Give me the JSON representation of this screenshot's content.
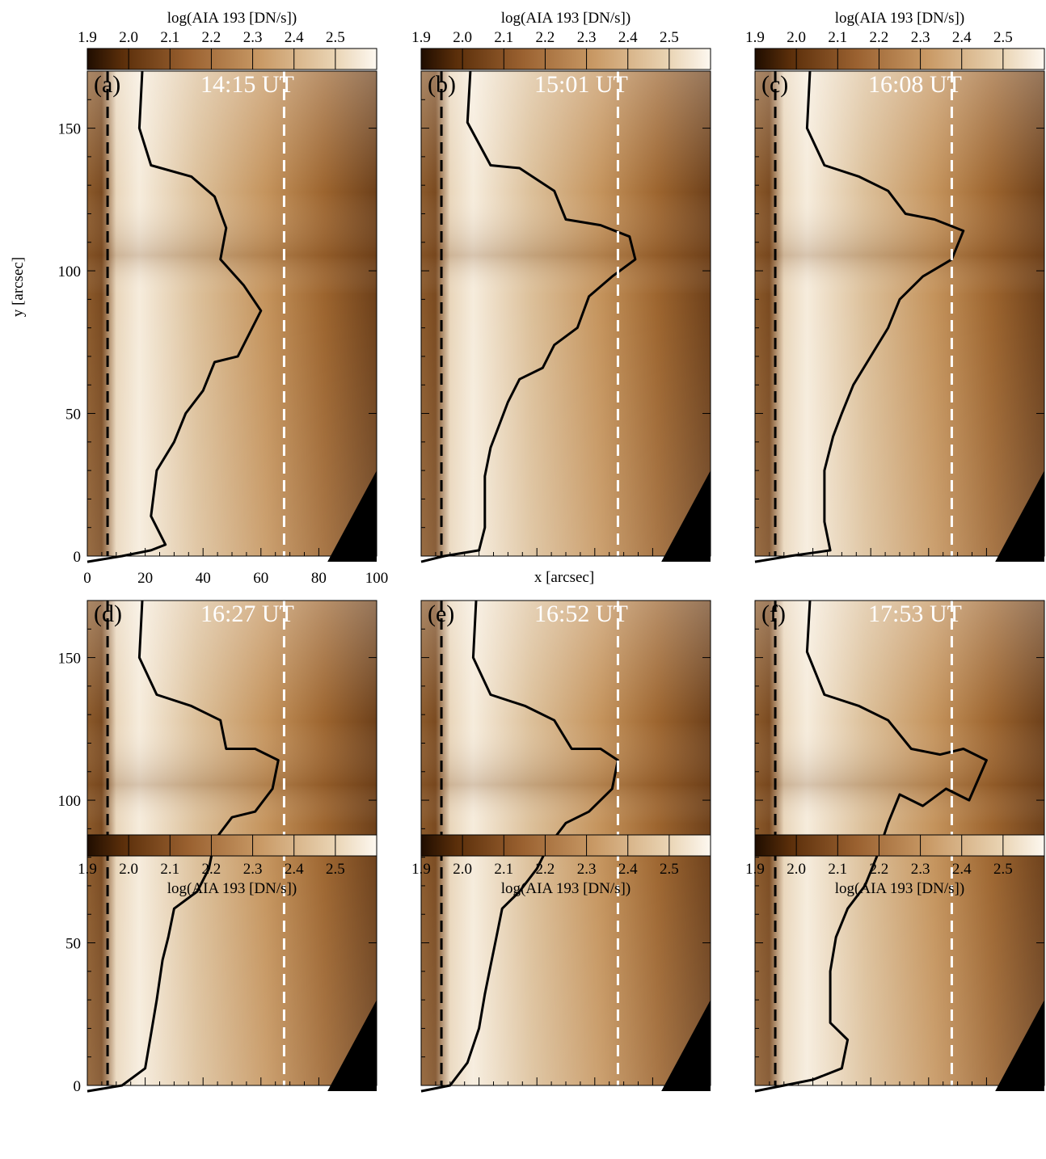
{
  "figure": {
    "xlabel": "x [arcsec]",
    "ylabel": "y [arcsec]",
    "colorbar_label": "log(AIA 193 [DN/s])",
    "colorbar_ticks": [
      "1.9",
      "2.0",
      "2.1",
      "2.2",
      "2.3",
      "2.4",
      "2.5"
    ]
  },
  "chart_data": [
    {
      "type": "heatmap",
      "panel_label": "(a)",
      "time": "14:15 UT",
      "colorbar_label": "log(AIA 193 [DN/s])",
      "colorbar_range": [
        1.9,
        2.6
      ],
      "xlim": [
        0,
        100
      ],
      "ylim": [
        0,
        170
      ],
      "xticks": [
        0,
        20,
        40,
        60,
        80,
        100
      ],
      "yticks": [
        0,
        50,
        100,
        150
      ],
      "xlabel": "",
      "ylabel": "y [arcsec]",
      "dashed_lines_x": [
        7,
        68
      ],
      "contour_boundary": [
        [
          19,
          170
        ],
        [
          18,
          150
        ],
        [
          22,
          137
        ],
        [
          36,
          133
        ],
        [
          44,
          126
        ],
        [
          48,
          115
        ],
        [
          46,
          104
        ],
        [
          54,
          95
        ],
        [
          60,
          86
        ],
        [
          56,
          78
        ],
        [
          52,
          70
        ],
        [
          44,
          68
        ],
        [
          40,
          58
        ],
        [
          34,
          50
        ],
        [
          30,
          40
        ],
        [
          24,
          30
        ],
        [
          22,
          14
        ],
        [
          27,
          4
        ],
        [
          22,
          2
        ],
        [
          12,
          0
        ],
        [
          0,
          -2
        ]
      ]
    },
    {
      "type": "heatmap",
      "panel_label": "(b)",
      "time": "15:01 UT",
      "colorbar_label": "log(AIA 193 [DN/s])",
      "colorbar_range": [
        1.9,
        2.6
      ],
      "xlim": [
        0,
        100
      ],
      "ylim": [
        0,
        170
      ],
      "yticks": [
        0,
        50,
        100,
        150
      ],
      "dashed_lines_x": [
        7,
        68
      ],
      "contour_boundary": [
        [
          17,
          170
        ],
        [
          16,
          152
        ],
        [
          24,
          137
        ],
        [
          34,
          136
        ],
        [
          46,
          128
        ],
        [
          50,
          118
        ],
        [
          62,
          116
        ],
        [
          72,
          112
        ],
        [
          74,
          104
        ],
        [
          66,
          98
        ],
        [
          58,
          91
        ],
        [
          54,
          80
        ],
        [
          46,
          74
        ],
        [
          42,
          66
        ],
        [
          34,
          62
        ],
        [
          30,
          54
        ],
        [
          27,
          46
        ],
        [
          24,
          38
        ],
        [
          22,
          28
        ],
        [
          22,
          10
        ],
        [
          20,
          2
        ],
        [
          8,
          0
        ],
        [
          0,
          -2
        ]
      ]
    },
    {
      "type": "heatmap",
      "panel_label": "(c)",
      "time": "16:08 UT",
      "colorbar_label": "log(AIA 193 [DN/s])",
      "colorbar_range": [
        1.9,
        2.6
      ],
      "xlim": [
        0,
        100
      ],
      "ylim": [
        0,
        170
      ],
      "yticks": [
        0,
        50,
        100,
        150
      ],
      "dashed_lines_x": [
        7,
        68
      ],
      "contour_boundary": [
        [
          19,
          170
        ],
        [
          18,
          150
        ],
        [
          24,
          137
        ],
        [
          36,
          133
        ],
        [
          46,
          128
        ],
        [
          52,
          120
        ],
        [
          62,
          118
        ],
        [
          72,
          114
        ],
        [
          68,
          104
        ],
        [
          58,
          98
        ],
        [
          50,
          90
        ],
        [
          46,
          80
        ],
        [
          40,
          70
        ],
        [
          34,
          60
        ],
        [
          30,
          50
        ],
        [
          27,
          42
        ],
        [
          24,
          30
        ],
        [
          24,
          12
        ],
        [
          26,
          2
        ],
        [
          12,
          0
        ],
        [
          0,
          -2
        ]
      ]
    },
    {
      "type": "heatmap",
      "panel_label": "(d)",
      "time": "16:27 UT",
      "colorbar_label": "log(AIA 193 [DN/s])",
      "colorbar_range": [
        1.9,
        2.6
      ],
      "xlim": [
        0,
        100
      ],
      "ylim": [
        0,
        170
      ],
      "yticks": [
        0,
        50,
        100,
        150
      ],
      "dashed_lines_x": [
        7,
        68
      ],
      "contour_boundary": [
        [
          19,
          170
        ],
        [
          18,
          150
        ],
        [
          24,
          137
        ],
        [
          36,
          133
        ],
        [
          46,
          128
        ],
        [
          48,
          118
        ],
        [
          58,
          118
        ],
        [
          66,
          114
        ],
        [
          64,
          104
        ],
        [
          58,
          96
        ],
        [
          50,
          94
        ],
        [
          44,
          86
        ],
        [
          42,
          76
        ],
        [
          38,
          68
        ],
        [
          30,
          62
        ],
        [
          28,
          52
        ],
        [
          26,
          44
        ],
        [
          24,
          30
        ],
        [
          22,
          18
        ],
        [
          20,
          6
        ],
        [
          12,
          0
        ],
        [
          0,
          -2
        ]
      ]
    },
    {
      "type": "heatmap",
      "panel_label": "(e)",
      "time": "16:52 UT",
      "colorbar_label": "log(AIA 193 [DN/s])",
      "colorbar_range": [
        1.9,
        2.6
      ],
      "xlim": [
        0,
        100
      ],
      "ylim": [
        0,
        170
      ],
      "yticks": [
        0,
        50,
        100,
        150
      ],
      "dashed_lines_x": [
        7,
        68
      ],
      "contour_boundary": [
        [
          19,
          170
        ],
        [
          18,
          150
        ],
        [
          24,
          137
        ],
        [
          36,
          133
        ],
        [
          46,
          128
        ],
        [
          52,
          118
        ],
        [
          62,
          118
        ],
        [
          68,
          114
        ],
        [
          66,
          104
        ],
        [
          58,
          96
        ],
        [
          50,
          92
        ],
        [
          44,
          84
        ],
        [
          40,
          76
        ],
        [
          34,
          68
        ],
        [
          28,
          62
        ],
        [
          26,
          52
        ],
        [
          24,
          42
        ],
        [
          22,
          32
        ],
        [
          20,
          20
        ],
        [
          16,
          8
        ],
        [
          10,
          0
        ],
        [
          0,
          -2
        ]
      ]
    },
    {
      "type": "heatmap",
      "panel_label": "(f)",
      "time": "17:53 UT",
      "colorbar_label": "log(AIA 193 [DN/s])",
      "colorbar_range": [
        1.9,
        2.6
      ],
      "xlim": [
        0,
        100
      ],
      "ylim": [
        0,
        170
      ],
      "yticks": [
        0,
        50,
        100,
        150
      ],
      "dashed_lines_x": [
        7,
        68
      ],
      "contour_boundary": [
        [
          19,
          170
        ],
        [
          18,
          152
        ],
        [
          24,
          137
        ],
        [
          36,
          133
        ],
        [
          46,
          128
        ],
        [
          54,
          118
        ],
        [
          64,
          116
        ],
        [
          72,
          118
        ],
        [
          80,
          114
        ],
        [
          74,
          100
        ],
        [
          66,
          104
        ],
        [
          58,
          98
        ],
        [
          50,
          102
        ],
        [
          46,
          92
        ],
        [
          42,
          80
        ],
        [
          38,
          70
        ],
        [
          32,
          62
        ],
        [
          28,
          52
        ],
        [
          26,
          40
        ],
        [
          26,
          30
        ],
        [
          26,
          22
        ],
        [
          32,
          16
        ],
        [
          30,
          6
        ],
        [
          20,
          2
        ],
        [
          10,
          0
        ],
        [
          0,
          -2
        ]
      ]
    }
  ]
}
